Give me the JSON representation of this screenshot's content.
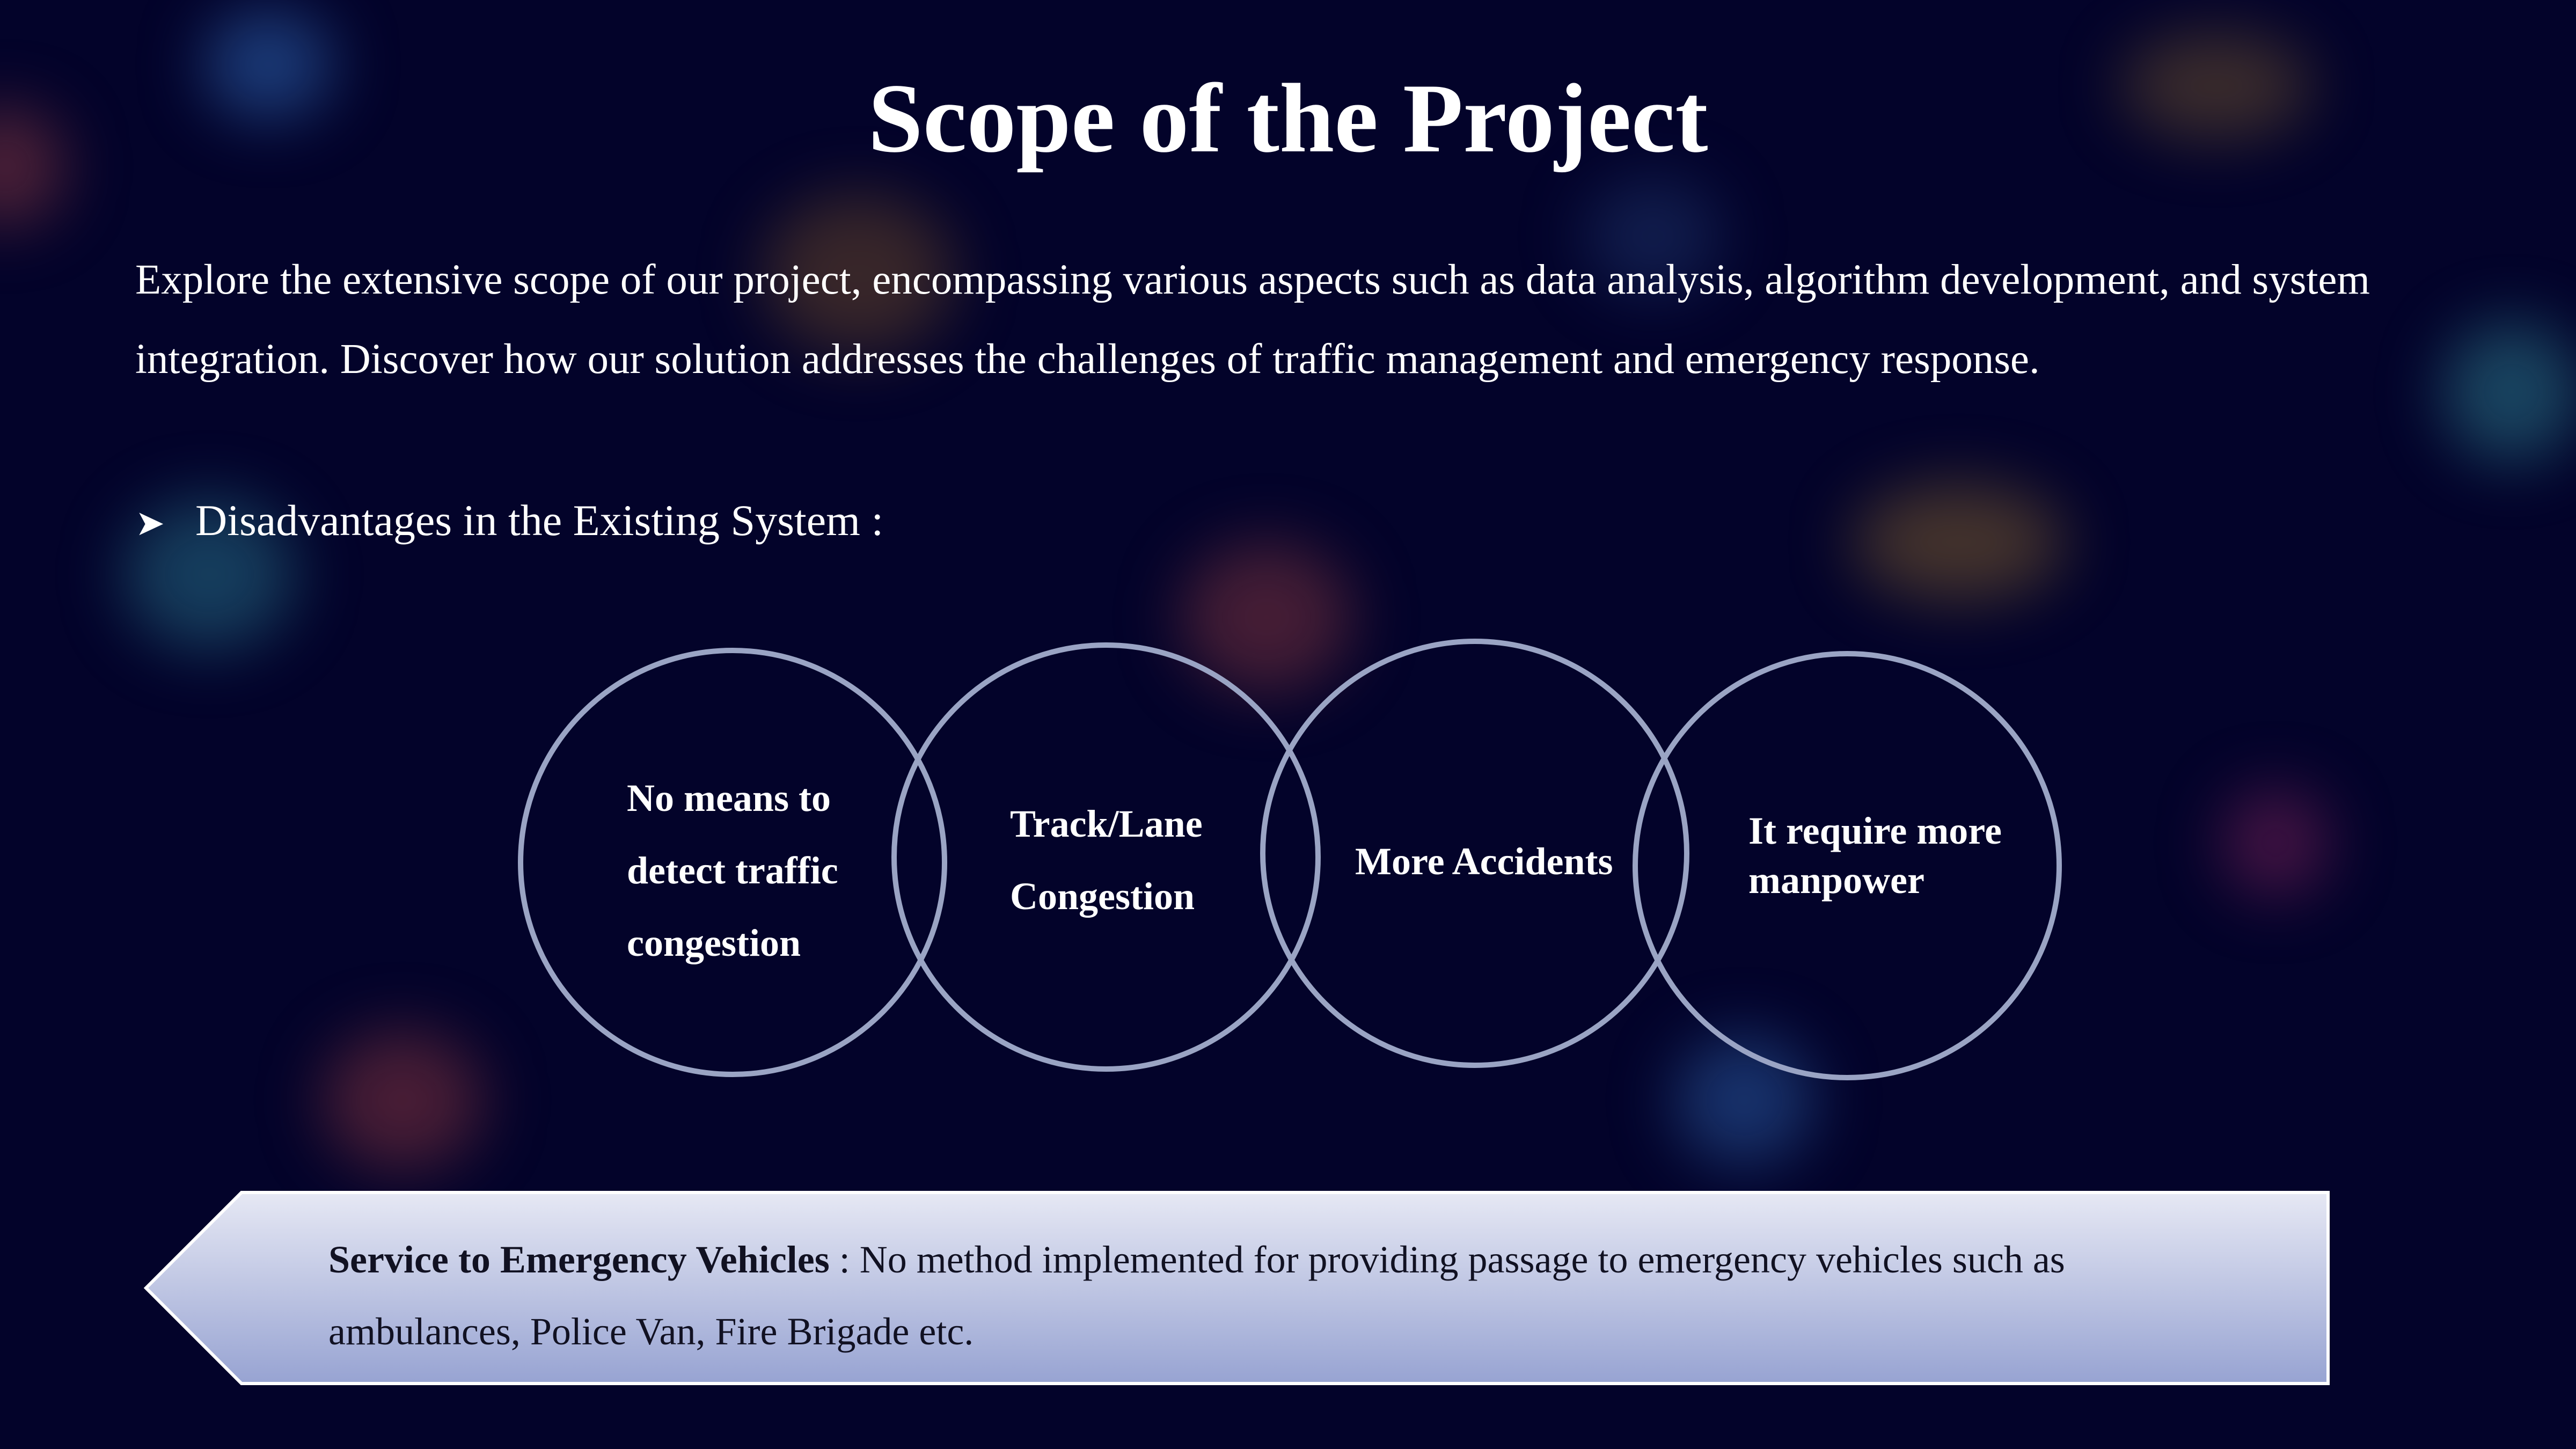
{
  "slide": {
    "title": "Scope of the Project",
    "intro": "Explore the extensive scope of our project, encompassing various aspects such as data analysis, algorithm development, and system integration. Discover how our solution addresses the challenges of traffic management and emergency response.",
    "bullet_icon": "arrow-bullet-icon",
    "bullet_text": "Disadvantages in the Existing System :"
  },
  "disadvantages": [
    {
      "label": "No means to detect traffic congestion"
    },
    {
      "label": "Track/Lane Congestion"
    },
    {
      "label": "More Accidents"
    },
    {
      "label": "It require more manpower"
    }
  ],
  "callout": {
    "heading": "Service to Emergency Vehicles",
    "text": " : No method implemented for providing passage to emergency vehicles such as ambulances, Police Van, Fire Brigade etc."
  },
  "colors": {
    "background": "#03032a",
    "circle_stroke": "#9aa4c4",
    "callout_top": "#e6e8f4",
    "callout_bottom": "#97a3d2"
  }
}
